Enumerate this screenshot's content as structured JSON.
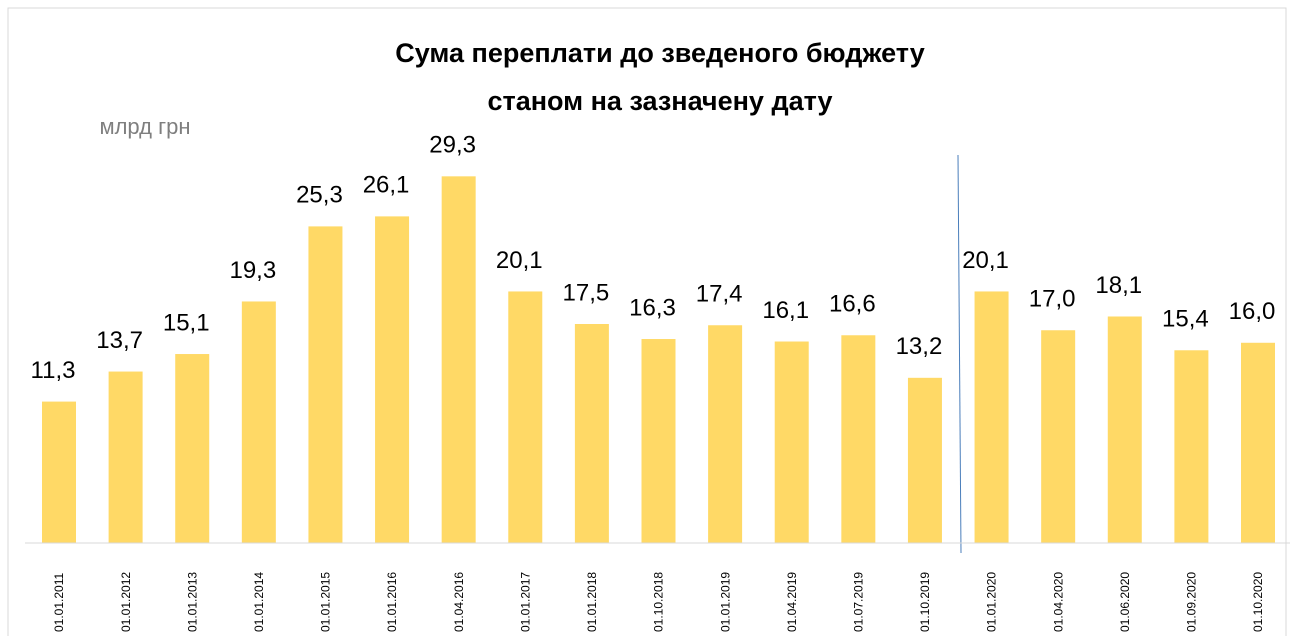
{
  "chart_data": {
    "type": "bar",
    "title": [
      "Сума переплати до зведеного бюджету",
      "станом на зазначену дату"
    ],
    "unit_label": "млрд грн",
    "categories": [
      "01.01.2011",
      "01.01.2012",
      "01.01.2013",
      "01.01.2014",
      "01.01.2015",
      "01.01.2016",
      "01.04.2016",
      "01.01.2017",
      "01.01.2018",
      "01.10.2018",
      "01.01.2019",
      "01.04.2019",
      "01.07.2019",
      "01.10.2019",
      "01.01.2020",
      "01.04.2020",
      "01.06.2020",
      "01.09.2020",
      "01.10.2020"
    ],
    "values": [
      11.3,
      13.7,
      15.1,
      19.3,
      25.3,
      26.1,
      29.3,
      20.1,
      17.5,
      16.3,
      17.4,
      16.1,
      16.6,
      13.2,
      20.1,
      17.0,
      18.1,
      15.4,
      16.0
    ],
    "value_labels": [
      "11,3",
      "13,7",
      "15,1",
      "19,3",
      "25,3",
      "26,1",
      "29,3",
      "20,1",
      "17,5",
      "16,3",
      "17,4",
      "16,1",
      "16,6",
      "13,2",
      "20,1",
      "17,0",
      "18,1",
      "15,4",
      "16,0"
    ],
    "color": "#ffd966",
    "ylim": [
      0,
      35
    ]
  }
}
